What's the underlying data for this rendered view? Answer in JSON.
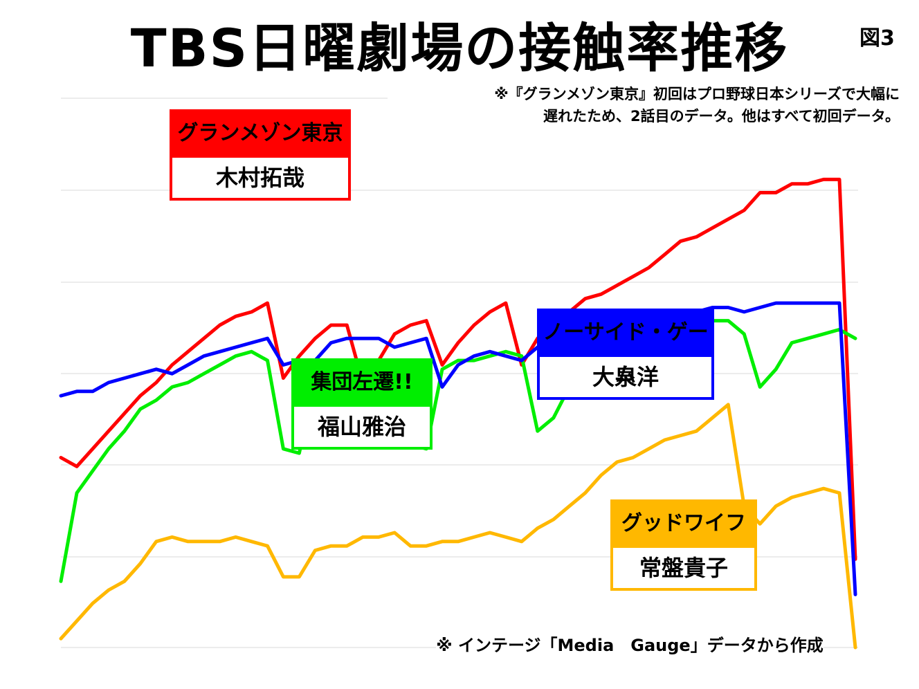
{
  "title": "TBS日曜劇場の接触率推移",
  "figure_label": "図3",
  "notes": {
    "top_line1": "※『グランメゾン東京』初回はプロ野球日本シリーズで大幅に",
    "top_line2": "遅れたため、2話目のデータ。他はすべて初回データ。",
    "bottom": "※ インテージ「Media　Gauge」データから作成"
  },
  "chart_data": {
    "type": "line",
    "title": "TBS日曜劇場の接触率推移",
    "xlabel": "",
    "ylabel": "",
    "grid": true,
    "gridline_count": 7,
    "x": [
      0,
      2,
      4,
      6,
      8,
      10,
      12,
      14,
      16,
      18,
      20,
      22,
      24,
      26,
      28,
      30,
      32,
      34,
      36,
      38,
      40,
      42,
      44,
      46,
      48,
      50,
      52,
      54,
      56,
      58,
      60,
      62,
      64,
      66,
      68,
      70,
      72,
      74,
      76,
      78,
      80,
      82,
      84,
      86,
      88,
      90,
      92,
      94,
      96,
      98,
      100
    ],
    "series": [
      {
        "name": "グランメゾン東京",
        "actor": "木村拓哉",
        "color": "#ff0000",
        "values": [
          4.3,
          4.1,
          4.5,
          4.9,
          5.3,
          5.7,
          6.0,
          6.4,
          6.7,
          7.0,
          7.3,
          7.5,
          7.6,
          7.8,
          6.1,
          6.6,
          7.0,
          7.3,
          7.3,
          6.0,
          6.5,
          7.1,
          7.3,
          7.4,
          6.4,
          6.9,
          7.3,
          7.6,
          7.8,
          6.4,
          7.0,
          7.4,
          7.6,
          7.9,
          8.0,
          8.2,
          8.4,
          8.6,
          8.9,
          9.2,
          9.3,
          9.5,
          9.7,
          9.9,
          10.3,
          10.3,
          10.5,
          10.5,
          10.6,
          10.6,
          2.0
        ]
      },
      {
        "name": "集団左遷!!",
        "actor": "福山雅治",
        "color": "#00ee00",
        "values": [
          1.5,
          3.5,
          4.0,
          4.5,
          4.9,
          5.4,
          5.6,
          5.9,
          6.0,
          6.2,
          6.4,
          6.6,
          6.7,
          6.5,
          4.5,
          4.4,
          6.1,
          6.1,
          6.1,
          6.1,
          6.2,
          6.3,
          4.6,
          4.5,
          6.3,
          6.5,
          6.5,
          6.6,
          6.7,
          6.6,
          4.9,
          5.2,
          5.9,
          6.2,
          6.7,
          7.2,
          7.3,
          7.5,
          7.5,
          7.5,
          7.4,
          7.4,
          7.4,
          7.1,
          5.9,
          6.3,
          6.9,
          7.0,
          7.1,
          7.2,
          7.0
        ]
      },
      {
        "name": "ノーサイド・ゲーム",
        "actor": "大泉洋",
        "color": "#0000ff",
        "values": [
          5.7,
          5.8,
          5.8,
          6.0,
          6.1,
          6.2,
          6.3,
          6.2,
          6.4,
          6.6,
          6.7,
          6.8,
          6.9,
          7.0,
          6.4,
          6.5,
          6.5,
          6.9,
          7.0,
          7.0,
          7.0,
          6.8,
          6.9,
          7.0,
          5.9,
          6.4,
          6.6,
          6.7,
          6.6,
          6.5,
          6.8,
          7.0,
          7.1,
          7.2,
          7.3,
          7.4,
          7.4,
          7.5,
          7.6,
          7.6,
          7.6,
          7.7,
          7.7,
          7.6,
          7.7,
          7.8,
          7.8,
          7.8,
          7.8,
          7.8,
          1.2
        ]
      },
      {
        "name": "グッドワイフ",
        "actor": "常盤貴子",
        "color": "#ffb800",
        "values": [
          0.2,
          0.6,
          1.0,
          1.3,
          1.5,
          1.9,
          2.4,
          2.5,
          2.4,
          2.4,
          2.4,
          2.5,
          2.4,
          2.3,
          1.6,
          1.6,
          2.2,
          2.3,
          2.3,
          2.5,
          2.5,
          2.6,
          2.3,
          2.3,
          2.4,
          2.4,
          2.5,
          2.6,
          2.5,
          2.4,
          2.7,
          2.9,
          3.2,
          3.5,
          3.9,
          4.2,
          4.3,
          4.5,
          4.7,
          4.8,
          4.9,
          5.2,
          5.5,
          3.2,
          2.8,
          3.2,
          3.4,
          3.5,
          3.6,
          3.5,
          0.0
        ]
      }
    ]
  },
  "legend_boxes": [
    {
      "show": "グランメゾン東京",
      "actor": "木村拓哉",
      "color": "#ff0000"
    },
    {
      "show": "集団左遷!!",
      "actor": "福山雅治",
      "color": "#00ee00"
    },
    {
      "show": "ノーサイド・ゲーム",
      "actor": "大泉洋",
      "color": "#0000ff"
    },
    {
      "show": "グッドワイフ",
      "actor": "常盤貴子",
      "color": "#ffb800"
    }
  ]
}
